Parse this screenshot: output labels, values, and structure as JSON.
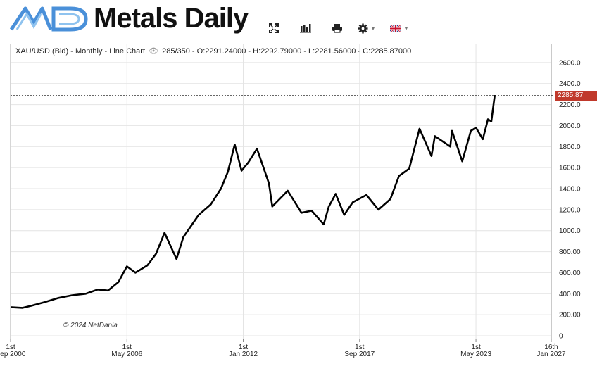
{
  "header": {
    "logo_text": "Metals Daily",
    "toolbar": [
      {
        "name": "fullscreen-icon",
        "label": "⛶"
      },
      {
        "name": "bar-chart-icon",
        "label": "ılıl"
      },
      {
        "name": "print-icon",
        "label": "🖶"
      },
      {
        "name": "settings-icon",
        "label": "⚙"
      },
      {
        "name": "language-flag-icon",
        "label": "🇬🇧"
      }
    ]
  },
  "info": {
    "symbol": "XAU/USD (Bid) - Monthly - Line Chart",
    "count": "285/350",
    "ohlc": "- O:2291.24000 - H:2292.79000 - L:2281.56000 - C:2285.87000"
  },
  "copyright": "© 2024 NetDania",
  "last_price_label": "2285.87",
  "colors": {
    "line": "#000000",
    "price_tag": "#c0392b",
    "grid": "#e4e4e4"
  },
  "chart_data": {
    "type": "line",
    "title": "",
    "xlabel": "",
    "ylabel": "",
    "ylim": [
      0,
      2800
    ],
    "y_ticks": [
      {
        "value": 0,
        "label": "0"
      },
      {
        "value": 200,
        "label": "200.00"
      },
      {
        "value": 400,
        "label": "400.00"
      },
      {
        "value": 600,
        "label": "600.00"
      },
      {
        "value": 800,
        "label": "800.00"
      },
      {
        "value": 1000,
        "label": "1000.0"
      },
      {
        "value": 1200,
        "label": "1200.0"
      },
      {
        "value": 1400,
        "label": "1400.0"
      },
      {
        "value": 1600,
        "label": "1600.0"
      },
      {
        "value": 1800,
        "label": "1800.0"
      },
      {
        "value": 2000,
        "label": "2000.0"
      },
      {
        "value": 2200,
        "label": "2200.0"
      },
      {
        "value": 2400,
        "label": "2400.0"
      },
      {
        "value": 2600,
        "label": "2600.0"
      }
    ],
    "xlim": [
      "2000-09",
      "2027-01"
    ],
    "x_ticks": [
      {
        "date": "2000-09",
        "top": "1st",
        "bottom": "Sep 2000"
      },
      {
        "date": "2006-05",
        "top": "1st",
        "bottom": "May 2006"
      },
      {
        "date": "2012-01",
        "top": "1st",
        "bottom": "Jan 2012"
      },
      {
        "date": "2017-09",
        "top": "1st",
        "bottom": "Sep 2017"
      },
      {
        "date": "2023-05",
        "top": "1st",
        "bottom": "May 2023"
      },
      {
        "date": "2027-01",
        "top": "16th",
        "bottom": "Jan 2027"
      }
    ],
    "last_value": 2285.87,
    "grid": true,
    "series": [
      {
        "name": "XAU/USD (Bid)",
        "points": [
          [
            "2000-09",
            272
          ],
          [
            "2001-04",
            265
          ],
          [
            "2001-09",
            285
          ],
          [
            "2002-05",
            320
          ],
          [
            "2003-01",
            360
          ],
          [
            "2003-09",
            385
          ],
          [
            "2004-05",
            400
          ],
          [
            "2004-12",
            440
          ],
          [
            "2005-06",
            430
          ],
          [
            "2005-12",
            510
          ],
          [
            "2006-05",
            660
          ],
          [
            "2006-10",
            600
          ],
          [
            "2007-05",
            670
          ],
          [
            "2007-10",
            780
          ],
          [
            "2008-03",
            980
          ],
          [
            "2008-10",
            730
          ],
          [
            "2009-02",
            940
          ],
          [
            "2009-11",
            1150
          ],
          [
            "2010-06",
            1250
          ],
          [
            "2010-12",
            1400
          ],
          [
            "2011-04",
            1560
          ],
          [
            "2011-08",
            1820
          ],
          [
            "2011-12",
            1570
          ],
          [
            "2012-04",
            1650
          ],
          [
            "2012-09",
            1780
          ],
          [
            "2013-04",
            1450
          ],
          [
            "2013-06",
            1230
          ],
          [
            "2014-03",
            1380
          ],
          [
            "2014-11",
            1170
          ],
          [
            "2015-05",
            1190
          ],
          [
            "2015-12",
            1060
          ],
          [
            "2016-03",
            1230
          ],
          [
            "2016-07",
            1350
          ],
          [
            "2016-12",
            1150
          ],
          [
            "2017-05",
            1270
          ],
          [
            "2018-01",
            1340
          ],
          [
            "2018-08",
            1200
          ],
          [
            "2019-03",
            1300
          ],
          [
            "2019-08",
            1520
          ],
          [
            "2020-02",
            1590
          ],
          [
            "2020-08",
            1970
          ],
          [
            "2021-03",
            1710
          ],
          [
            "2021-05",
            1900
          ],
          [
            "2022-02",
            1800
          ],
          [
            "2022-03",
            1950
          ],
          [
            "2022-09",
            1660
          ],
          [
            "2023-02",
            1950
          ],
          [
            "2023-05",
            1980
          ],
          [
            "2023-09",
            1870
          ],
          [
            "2023-12",
            2060
          ],
          [
            "2024-02",
            2040
          ],
          [
            "2024-04",
            2290
          ]
        ]
      }
    ]
  }
}
